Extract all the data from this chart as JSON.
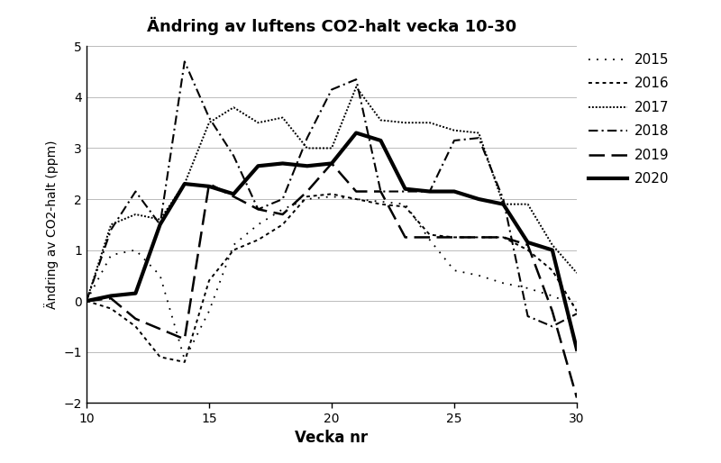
{
  "title": "Ändring av luftens CO2-halt vecka 10-30",
  "xlabel": "Vecka nr",
  "ylabel": "Ändring av CO2-halt (ppm)",
  "xlim": [
    10,
    30
  ],
  "ylim": [
    -2,
    5
  ],
  "yticks": [
    -2,
    -1,
    0,
    1,
    2,
    3,
    4,
    5
  ],
  "xticks": [
    10,
    15,
    20,
    25,
    30
  ],
  "weeks": [
    10,
    11,
    12,
    13,
    14,
    15,
    16,
    17,
    18,
    19,
    20,
    21,
    22,
    23,
    24,
    25,
    26,
    27,
    28,
    29,
    30
  ],
  "series": {
    "2015": [
      0.0,
      0.9,
      1.0,
      0.5,
      -1.15,
      -0.2,
      1.1,
      1.5,
      1.8,
      2.0,
      2.05,
      2.0,
      1.95,
      1.9,
      1.2,
      0.6,
      0.5,
      0.35,
      0.25,
      0.1,
      -0.1
    ],
    "2016": [
      0.0,
      -0.15,
      -0.5,
      -1.1,
      -1.2,
      0.4,
      1.0,
      1.2,
      1.5,
      2.05,
      2.1,
      2.0,
      1.9,
      1.85,
      1.3,
      1.25,
      1.25,
      1.25,
      1.0,
      0.6,
      -0.2
    ],
    "2017": [
      0.0,
      1.5,
      1.7,
      1.6,
      2.3,
      3.5,
      3.8,
      3.5,
      3.6,
      3.0,
      3.0,
      4.2,
      3.55,
      3.5,
      3.5,
      3.35,
      3.3,
      1.9,
      1.9,
      1.1,
      0.55
    ],
    "2018": [
      0.0,
      1.4,
      2.15,
      1.5,
      4.7,
      3.6,
      2.85,
      1.8,
      2.0,
      3.2,
      4.15,
      4.35,
      2.15,
      2.15,
      2.15,
      3.15,
      3.2,
      2.0,
      -0.3,
      -0.5,
      -0.25
    ],
    "2019": [
      0.0,
      0.05,
      -0.35,
      -0.55,
      -0.75,
      2.3,
      2.05,
      1.8,
      1.7,
      2.15,
      2.7,
      2.15,
      2.15,
      1.25,
      1.25,
      1.25,
      1.25,
      1.25,
      1.1,
      -0.2,
      -1.9
    ],
    "2020": [
      0.0,
      0.1,
      0.15,
      1.5,
      2.3,
      2.25,
      2.1,
      2.65,
      2.7,
      2.65,
      2.7,
      3.3,
      3.15,
      2.2,
      2.15,
      2.15,
      2.0,
      1.9,
      1.15,
      1.0,
      -0.95
    ]
  },
  "background_color": "#ffffff",
  "grid_color": "#bbbbbb"
}
